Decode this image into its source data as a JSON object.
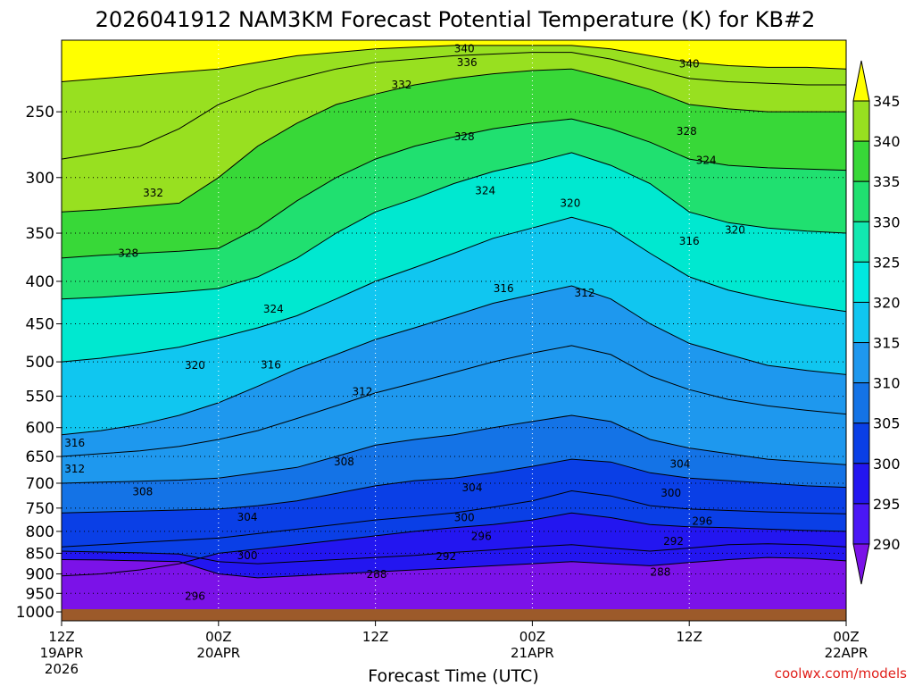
{
  "chart_data": {
    "type": "heatmap",
    "title": "2026041912 NAM3KM Forecast Potential Temperature (K) for KB#2",
    "xlabel": "Forecast Time (UTC)",
    "ylabel": "",
    "credit": "coolwx.com/models",
    "y_scale": "log-pressure",
    "ylim": [
      1025,
      205
    ],
    "y_ticks": [
      250,
      300,
      350,
      400,
      450,
      500,
      550,
      600,
      650,
      700,
      750,
      800,
      850,
      900,
      950,
      1000
    ],
    "x_range_hours": [
      0,
      60
    ],
    "x_ticks": [
      {
        "hour": 0,
        "line1": "12Z",
        "line2": "19APR",
        "line3": "2026"
      },
      {
        "hour": 12,
        "line1": "00Z",
        "line2": "20APR",
        "line3": ""
      },
      {
        "hour": 24,
        "line1": "12Z",
        "line2": "",
        "line3": ""
      },
      {
        "hour": 36,
        "line1": "00Z",
        "line2": "21APR",
        "line3": ""
      },
      {
        "hour": 48,
        "line1": "12Z",
        "line2": "",
        "line3": ""
      },
      {
        "hour": 60,
        "line1": "00Z",
        "line2": "22APR",
        "line3": ""
      }
    ],
    "colorbar": {
      "levels": [
        290,
        295,
        300,
        305,
        310,
        315,
        320,
        325,
        330,
        335,
        340,
        345
      ],
      "labels": [
        "290",
        "295",
        "300",
        "305",
        "310",
        "315",
        "320",
        "325",
        "330",
        "335",
        "340",
        "345"
      ],
      "colors": [
        "#6b13f0",
        "#4a17f5",
        "#2316f0",
        "#0a3fe6",
        "#1473e6",
        "#1e98ee",
        "#10c6f0",
        "#00e8e0",
        "#12e8b0",
        "#20e070",
        "#38d838",
        "#98e020",
        "#ffff00"
      ],
      "under_color": "#7b12e8",
      "over_color": "#ffff00"
    },
    "time_hours": [
      0,
      3,
      6,
      9,
      12,
      15,
      18,
      21,
      24,
      27,
      30,
      33,
      36,
      39,
      42,
      45,
      48,
      51,
      54,
      57,
      60
    ],
    "pressure_levels": [
      1000,
      950,
      900,
      850,
      800,
      750,
      700,
      650,
      600,
      550,
      500,
      450,
      400,
      350,
      300,
      250,
      210
    ],
    "contour_lines": [
      {
        "level": 288,
        "label": "288",
        "p": [
          865,
          866,
          868,
          870,
          900,
          910,
          905,
          900,
          895,
          890,
          885,
          880,
          875,
          870,
          875,
          880,
          872,
          865,
          860,
          862,
          868
        ]
      },
      {
        "level": 292,
        "label": "292",
        "p": [
          845,
          847,
          849,
          852,
          870,
          875,
          870,
          865,
          860,
          855,
          848,
          842,
          835,
          830,
          838,
          845,
          838,
          830,
          828,
          830,
          835
        ]
      },
      {
        "level": 296,
        "label": "296",
        "p": [
          905,
          900,
          890,
          875,
          850,
          840,
          830,
          820,
          810,
          800,
          792,
          785,
          775,
          760,
          770,
          785,
          790,
          792,
          795,
          798,
          800
        ]
      },
      {
        "level": 300,
        "label": "300",
        "p": [
          835,
          830,
          825,
          820,
          815,
          805,
          795,
          785,
          775,
          768,
          760,
          748,
          735,
          715,
          725,
          745,
          752,
          755,
          758,
          760,
          762
        ]
      },
      {
        "level": 304,
        "label": "304",
        "p": [
          760,
          758,
          756,
          754,
          752,
          745,
          735,
          720,
          705,
          695,
          690,
          680,
          668,
          655,
          660,
          680,
          690,
          695,
          700,
          705,
          708
        ]
      },
      {
        "level": 308,
        "label": "308",
        "p": [
          700,
          698,
          696,
          694,
          690,
          680,
          670,
          650,
          630,
          620,
          612,
          600,
          590,
          580,
          590,
          620,
          635,
          645,
          655,
          660,
          665
        ]
      },
      {
        "level": 312,
        "label": "312",
        "p": [
          650,
          645,
          640,
          632,
          620,
          605,
          585,
          565,
          545,
          530,
          515,
          500,
          488,
          478,
          490,
          520,
          540,
          555,
          565,
          572,
          578
        ]
      },
      {
        "level": 316,
        "label": "316",
        "p": [
          612,
          605,
          595,
          580,
          560,
          535,
          510,
          490,
          470,
          455,
          440,
          425,
          415,
          405,
          420,
          450,
          475,
          490,
          505,
          512,
          518
        ]
      },
      {
        "level": 320,
        "label": "320",
        "p": [
          500,
          495,
          488,
          480,
          468,
          455,
          440,
          420,
          400,
          385,
          370,
          355,
          345,
          335,
          345,
          370,
          395,
          410,
          420,
          428,
          435
        ]
      },
      {
        "level": 324,
        "label": "324",
        "p": [
          420,
          418,
          415,
          412,
          408,
          395,
          375,
          350,
          330,
          318,
          305,
          295,
          288,
          280,
          290,
          305,
          330,
          340,
          345,
          348,
          350
        ]
      },
      {
        "level": 328,
        "label": "328",
        "p": [
          375,
          372,
          370,
          368,
          365,
          345,
          320,
          300,
          285,
          275,
          268,
          262,
          258,
          255,
          262,
          272,
          285,
          290,
          292,
          293,
          294
        ]
      },
      {
        "level": 332,
        "label": "332",
        "p": [
          330,
          328,
          325,
          322,
          300,
          275,
          258,
          245,
          238,
          232,
          228,
          225,
          223,
          222,
          228,
          235,
          245,
          248,
          250,
          250,
          250
        ]
      },
      {
        "level": 336,
        "label": "336",
        "p": [
          285,
          280,
          275,
          262,
          245,
          235,
          228,
          222,
          218,
          216,
          214,
          213,
          212,
          212,
          216,
          222,
          228,
          230,
          231,
          232,
          232
        ]
      },
      {
        "level": 340,
        "label": "340",
        "p": [
          230,
          228,
          226,
          224,
          222,
          218,
          214,
          212,
          210,
          209,
          208,
          208,
          208,
          208,
          210,
          214,
          218,
          220,
          221,
          221,
          222
        ]
      }
    ],
    "inline_labels": [
      {
        "text": "340",
        "hour": 30.8,
        "p": 210
      },
      {
        "text": "336",
        "hour": 31.0,
        "p": 218
      },
      {
        "text": "340",
        "hour": 48.0,
        "p": 219
      },
      {
        "text": "332",
        "hour": 26.0,
        "p": 232
      },
      {
        "text": "328",
        "hour": 30.8,
        "p": 268
      },
      {
        "text": "328",
        "hour": 47.8,
        "p": 264
      },
      {
        "text": "324",
        "hour": 49.3,
        "p": 286
      },
      {
        "text": "324",
        "hour": 32.4,
        "p": 311
      },
      {
        "text": "332",
        "hour": 7.0,
        "p": 313
      },
      {
        "text": "320",
        "hour": 38.9,
        "p": 322
      },
      {
        "text": "320",
        "hour": 51.5,
        "p": 347
      },
      {
        "text": "316",
        "hour": 48.0,
        "p": 358
      },
      {
        "text": "328",
        "hour": 5.1,
        "p": 370
      },
      {
        "text": "316",
        "hour": 33.8,
        "p": 408
      },
      {
        "text": "312",
        "hour": 40.0,
        "p": 413
      },
      {
        "text": "324",
        "hour": 16.2,
        "p": 432
      },
      {
        "text": "320",
        "hour": 10.2,
        "p": 505
      },
      {
        "text": "316",
        "hour": 16.0,
        "p": 504
      },
      {
        "text": "312",
        "hour": 23.0,
        "p": 543
      },
      {
        "text": "316",
        "hour": 1.0,
        "p": 626
      },
      {
        "text": "312",
        "hour": 1.0,
        "p": 673
      },
      {
        "text": "308",
        "hour": 21.6,
        "p": 660
      },
      {
        "text": "304",
        "hour": 47.3,
        "p": 664
      },
      {
        "text": "304",
        "hour": 31.4,
        "p": 709
      },
      {
        "text": "308",
        "hour": 6.2,
        "p": 717
      },
      {
        "text": "300",
        "hour": 46.6,
        "p": 719
      },
      {
        "text": "304",
        "hour": 14.2,
        "p": 769
      },
      {
        "text": "300",
        "hour": 30.8,
        "p": 770
      },
      {
        "text": "296",
        "hour": 49.0,
        "p": 778
      },
      {
        "text": "296",
        "hour": 32.1,
        "p": 811
      },
      {
        "text": "292",
        "hour": 46.8,
        "p": 822
      },
      {
        "text": "300",
        "hour": 14.2,
        "p": 855
      },
      {
        "text": "292",
        "hour": 29.4,
        "p": 858
      },
      {
        "text": "288",
        "hour": 24.1,
        "p": 901
      },
      {
        "text": "288",
        "hour": 45.8,
        "p": 896
      },
      {
        "text": "296",
        "hour": 10.2,
        "p": 958
      }
    ]
  }
}
